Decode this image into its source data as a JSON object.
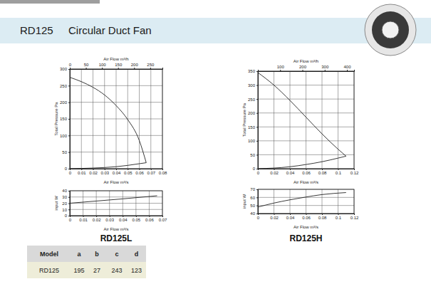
{
  "page": {
    "model": "RD125",
    "title": "Circular Duct Fan"
  },
  "chart_data": [
    {
      "type": "line",
      "grid": true,
      "x_label": "Air Flow m³/s",
      "y_label": "Total Pressure Pa",
      "x2_label": "Air Flow m³/h",
      "xlim": [
        0,
        0.08
      ],
      "xticks": [
        0,
        0.01,
        0.02,
        0.03,
        0.04,
        0.05,
        0.06,
        0.07,
        0.08
      ],
      "ylim": [
        0,
        300
      ],
      "yticks": [
        0,
        50,
        100,
        150,
        200,
        250,
        300
      ],
      "x2lim": [
        0,
        288
      ],
      "x2ticks": [
        0,
        50,
        100,
        150,
        200,
        250
      ],
      "series": [
        {
          "color": "#222222",
          "x": [
            0,
            0.01,
            0.02,
            0.03,
            0.04,
            0.05,
            0.06,
            0.066
          ],
          "values": [
            275,
            262,
            245,
            222,
            190,
            148,
            85,
            18
          ]
        },
        {
          "color": "#222222",
          "x": [
            0,
            0.02,
            0.04,
            0.05,
            0.06,
            0.066
          ],
          "values": [
            0,
            2,
            6,
            10,
            15,
            18
          ]
        }
      ]
    },
    {
      "type": "line",
      "grid": true,
      "title": "RD125L",
      "x_label": "Air Flow m³/s",
      "y_label": "input W",
      "xlim": [
        0,
        0.07
      ],
      "xticks": [
        0,
        0.01,
        0.02,
        0.03,
        0.04,
        0.05,
        0.06,
        0.07
      ],
      "ylim": [
        0,
        40
      ],
      "yticks": [
        0,
        10,
        20,
        30,
        40
      ],
      "series": [
        {
          "color": "#222222",
          "x": [
            0,
            0.02,
            0.04,
            0.066
          ],
          "values": [
            20,
            23.5,
            27,
            32
          ]
        }
      ]
    },
    {
      "type": "line",
      "grid": true,
      "x_label": "Air Flow m³/s",
      "y_label": "Total Pressure Pa",
      "x2_label": "Air Flow m³/h",
      "xlim": [
        0,
        0.12
      ],
      "xticks": [
        0,
        0.02,
        0.04,
        0.06,
        0.08,
        0.1,
        0.12
      ],
      "ylim": [
        0,
        350
      ],
      "yticks": [
        0,
        50,
        100,
        150,
        200,
        250,
        300,
        350
      ],
      "x2lim": [
        0,
        432
      ],
      "x2ticks": [
        100,
        200,
        300,
        400
      ],
      "series": [
        {
          "color": "#222222",
          "x": [
            0,
            0.02,
            0.04,
            0.06,
            0.08,
            0.1,
            0.11
          ],
          "values": [
            345,
            300,
            245,
            185,
            125,
            70,
            45
          ]
        },
        {
          "color": "#222222",
          "x": [
            0,
            0.04,
            0.06,
            0.08,
            0.1,
            0.11
          ],
          "values": [
            0,
            7,
            15,
            25,
            38,
            45
          ]
        }
      ]
    },
    {
      "type": "line",
      "grid": true,
      "title": "RD125H",
      "x_label": "Air Flow m³/s",
      "y_label": "input W",
      "xlim": [
        0,
        0.12
      ],
      "xticks": [
        0,
        0.02,
        0.04,
        0.06,
        0.08,
        0.1,
        0.12
      ],
      "ylim": [
        40,
        70
      ],
      "yticks": [
        40,
        50,
        60,
        70
      ],
      "series": [
        {
          "color": "#222222",
          "x": [
            0,
            0.02,
            0.04,
            0.06,
            0.08,
            0.11
          ],
          "values": [
            48,
            53,
            57,
            60.5,
            63.5,
            66
          ]
        }
      ]
    }
  ],
  "table": {
    "columns": [
      "Model",
      "a",
      "b",
      "c",
      "d"
    ],
    "rows": [
      [
        "RD125",
        195,
        27,
        243,
        123
      ]
    ]
  }
}
